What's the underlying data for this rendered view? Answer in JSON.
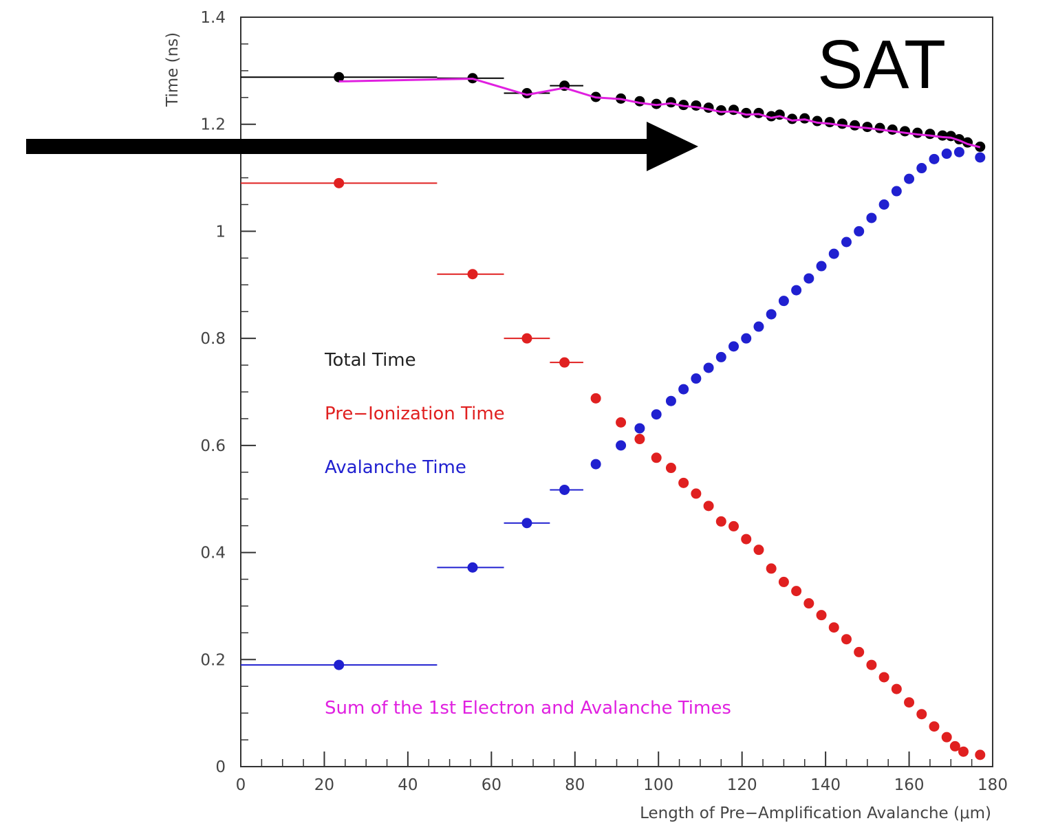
{
  "chart_data": {
    "type": "scatter",
    "xlabel": "Length of Pre−Amplification Avalanche (μm)",
    "ylabel": "Time (ns)",
    "xlim": [
      0,
      180
    ],
    "ylim": [
      0,
      1.4
    ],
    "x_ticks": [
      0,
      20,
      40,
      60,
      80,
      100,
      120,
      140,
      160,
      180
    ],
    "y_ticks": [
      0,
      0.2,
      0.4,
      0.6,
      0.8,
      1,
      1.2,
      1.4
    ],
    "x_tick_labels": [
      "0",
      "20",
      "40",
      "60",
      "80",
      "100",
      "120",
      "140",
      "160",
      "180"
    ],
    "y_tick_labels": [
      "0",
      "0.2",
      "0.4",
      "0.6",
      "0.8",
      "1",
      "1.2",
      "1.4"
    ],
    "grid": false,
    "annotation": "SAT",
    "legend": [
      {
        "label": "Total Time",
        "color": "#222222"
      },
      {
        "label": "Pre−Ionization Time",
        "color": "#e02020"
      },
      {
        "label": "Avalanche Time",
        "color": "#2020d0"
      },
      {
        "label": "Sum of the 1st Electron and Avalanche Times",
        "color": "#e020e0"
      }
    ],
    "series": [
      {
        "name": "Total Time",
        "color": "#000000",
        "points": [
          [
            23.5,
            1.288
          ],
          [
            55.5,
            1.286
          ],
          [
            68.5,
            1.258
          ],
          [
            77.5,
            1.272
          ],
          [
            85,
            1.251
          ],
          [
            91,
            1.248
          ],
          [
            95.5,
            1.243
          ],
          [
            99.5,
            1.238
          ],
          [
            103,
            1.241
          ],
          [
            106,
            1.236
          ],
          [
            109,
            1.235
          ],
          [
            112,
            1.231
          ],
          [
            115,
            1.226
          ],
          [
            118,
            1.227
          ],
          [
            121,
            1.221
          ],
          [
            124,
            1.221
          ],
          [
            127,
            1.215
          ],
          [
            129,
            1.218
          ],
          [
            132,
            1.21
          ],
          [
            135,
            1.211
          ],
          [
            138,
            1.206
          ],
          [
            141,
            1.204
          ],
          [
            144,
            1.201
          ],
          [
            147,
            1.198
          ],
          [
            150,
            1.195
          ],
          [
            153,
            1.193
          ],
          [
            156,
            1.19
          ],
          [
            159,
            1.187
          ],
          [
            162,
            1.184
          ],
          [
            165,
            1.182
          ],
          [
            168,
            1.179
          ],
          [
            170,
            1.178
          ],
          [
            172,
            1.172
          ],
          [
            174,
            1.166
          ],
          [
            177,
            1.158
          ]
        ],
        "xerr": [
          [
            0,
            47
          ],
          [
            47,
            63
          ],
          [
            63,
            74
          ],
          [
            74,
            82
          ]
        ],
        "xerr_at_index": [
          0,
          1,
          2,
          3
        ]
      },
      {
        "name": "Sum of the 1st Electron and Avalanche Times",
        "color": "#e020e0",
        "points": [
          [
            23.5,
            1.28
          ],
          [
            55.5,
            1.285
          ],
          [
            68.5,
            1.255
          ],
          [
            77.5,
            1.268
          ],
          [
            85,
            1.25
          ],
          [
            91,
            1.247
          ],
          [
            95.5,
            1.24
          ],
          [
            99.5,
            1.236
          ],
          [
            103,
            1.239
          ],
          [
            106,
            1.234
          ],
          [
            109,
            1.232
          ],
          [
            112,
            1.228
          ],
          [
            115,
            1.223
          ],
          [
            118,
            1.224
          ],
          [
            121,
            1.218
          ],
          [
            124,
            1.219
          ],
          [
            127,
            1.212
          ],
          [
            129,
            1.215
          ],
          [
            132,
            1.207
          ],
          [
            135,
            1.209
          ],
          [
            138,
            1.203
          ],
          [
            141,
            1.201
          ],
          [
            144,
            1.198
          ],
          [
            147,
            1.195
          ],
          [
            150,
            1.193
          ],
          [
            153,
            1.19
          ],
          [
            156,
            1.187
          ],
          [
            159,
            1.184
          ],
          [
            162,
            1.181
          ],
          [
            165,
            1.179
          ],
          [
            168,
            1.176
          ],
          [
            170,
            1.175
          ],
          [
            172,
            1.17
          ],
          [
            174,
            1.163
          ],
          [
            177,
            1.157
          ]
        ]
      },
      {
        "name": "Pre−Ionization Time",
        "color": "#e02020",
        "points": [
          [
            23.5,
            1.09
          ],
          [
            55.5,
            0.92
          ],
          [
            68.5,
            0.8
          ],
          [
            77.5,
            0.755
          ],
          [
            85,
            0.688
          ],
          [
            91,
            0.643
          ],
          [
            95.5,
            0.612
          ],
          [
            99.5,
            0.577
          ],
          [
            103,
            0.558
          ],
          [
            106,
            0.53
          ],
          [
            109,
            0.51
          ],
          [
            112,
            0.487
          ],
          [
            115,
            0.458
          ],
          [
            118,
            0.449
          ],
          [
            121,
            0.425
          ],
          [
            124,
            0.405
          ],
          [
            127,
            0.37
          ],
          [
            130,
            0.345
          ],
          [
            133,
            0.328
          ],
          [
            136,
            0.305
          ],
          [
            139,
            0.283
          ],
          [
            142,
            0.26
          ],
          [
            145,
            0.238
          ],
          [
            148,
            0.214
          ],
          [
            151,
            0.19
          ],
          [
            154,
            0.167
          ],
          [
            157,
            0.145
          ],
          [
            160,
            0.12
          ],
          [
            163,
            0.098
          ],
          [
            166,
            0.075
          ],
          [
            169,
            0.055
          ],
          [
            171,
            0.038
          ],
          [
            173,
            0.028
          ],
          [
            177,
            0.022
          ]
        ],
        "xerr": [
          [
            0,
            47
          ],
          [
            47,
            63
          ],
          [
            63,
            74
          ],
          [
            74,
            82
          ]
        ],
        "xerr_at_index": [
          0,
          1,
          2,
          3
        ]
      },
      {
        "name": "Avalanche Time",
        "color": "#2020d0",
        "points": [
          [
            23.5,
            0.19
          ],
          [
            55.5,
            0.372
          ],
          [
            68.5,
            0.455
          ],
          [
            77.5,
            0.517
          ],
          [
            85,
            0.565
          ],
          [
            91,
            0.6
          ],
          [
            95.5,
            0.632
          ],
          [
            99.5,
            0.658
          ],
          [
            103,
            0.683
          ],
          [
            106,
            0.705
          ],
          [
            109,
            0.725
          ],
          [
            112,
            0.745
          ],
          [
            115,
            0.765
          ],
          [
            118,
            0.785
          ],
          [
            121,
            0.8
          ],
          [
            124,
            0.822
          ],
          [
            127,
            0.845
          ],
          [
            130,
            0.87
          ],
          [
            133,
            0.89
          ],
          [
            136,
            0.912
          ],
          [
            139,
            0.935
          ],
          [
            142,
            0.958
          ],
          [
            145,
            0.98
          ],
          [
            148,
            1.0
          ],
          [
            151,
            1.025
          ],
          [
            154,
            1.05
          ],
          [
            157,
            1.075
          ],
          [
            160,
            1.098
          ],
          [
            163,
            1.118
          ],
          [
            166,
            1.135
          ],
          [
            169,
            1.145
          ],
          [
            172,
            1.148
          ],
          [
            177,
            1.138
          ]
        ],
        "xerr": [
          [
            0,
            47
          ],
          [
            47,
            63
          ],
          [
            63,
            74
          ],
          [
            74,
            82
          ]
        ],
        "xerr_at_index": [
          0,
          1,
          2,
          3
        ]
      }
    ]
  }
}
